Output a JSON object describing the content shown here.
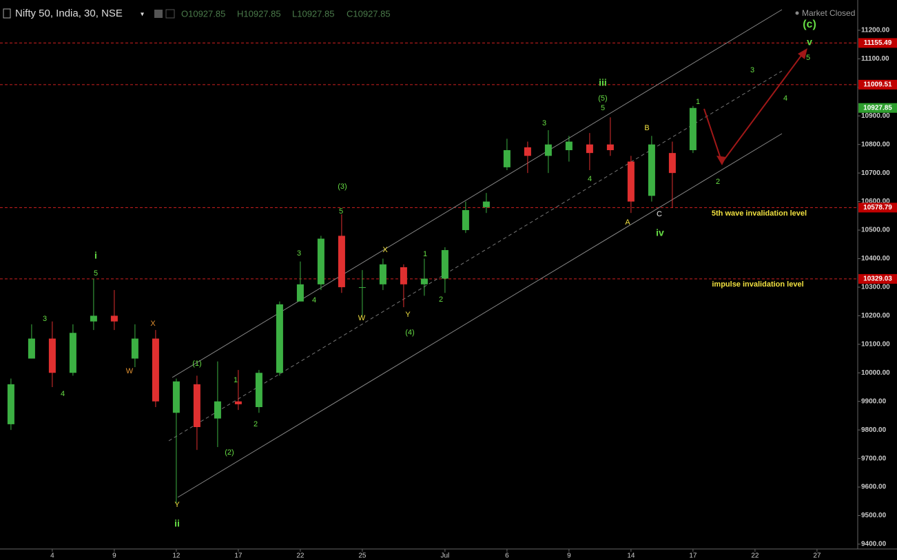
{
  "chart_data": {
    "type": "candlestick",
    "title": "Nifty 50, India, 30, NSE",
    "legend_values": [
      "O10927.85",
      "H10927.85",
      "L10927.85",
      "C10927.85"
    ],
    "status": "Market Closed",
    "up_color": "#3cb043",
    "down_color": "#e03030",
    "candles": [
      {
        "x": -2,
        "open": 9820,
        "high": 9980,
        "low": 9800,
        "close": 9960
      },
      {
        "x": -1,
        "open": 10050,
        "high": 10170,
        "low": 10050,
        "close": 10120
      },
      {
        "x": 0,
        "open": 10120,
        "high": 10180,
        "low": 9950,
        "close": 10000
      },
      {
        "x": 1,
        "open": 10000,
        "high": 10170,
        "low": 9990,
        "close": 10140
      },
      {
        "x": 2,
        "open": 10180,
        "high": 10330,
        "low": 10150,
        "close": 10200
      },
      {
        "x": 3,
        "open": 10200,
        "high": 10290,
        "low": 10150,
        "close": 10180
      },
      {
        "x": 4,
        "open": 10050,
        "high": 10170,
        "low": 10020,
        "close": 10120
      },
      {
        "x": 5,
        "open": 10120,
        "high": 10150,
        "low": 9880,
        "close": 9900
      },
      {
        "x": 6,
        "open": 9860,
        "high": 9980,
        "low": 9544,
        "close": 9970
      },
      {
        "x": 7,
        "open": 9960,
        "high": 9990,
        "low": 9730,
        "close": 9810
      },
      {
        "x": 8,
        "open": 9840,
        "high": 10040,
        "low": 9740,
        "close": 9900
      },
      {
        "x": 9,
        "open": 9900,
        "high": 10010,
        "low": 9870,
        "close": 9890
      },
      {
        "x": 10,
        "open": 9880,
        "high": 10010,
        "low": 9860,
        "close": 10000
      },
      {
        "x": 11,
        "open": 10000,
        "high": 10250,
        "low": 9990,
        "close": 10240
      },
      {
        "x": 12,
        "open": 10250,
        "high": 10390,
        "low": 10260,
        "close": 10310
      },
      {
        "x": 13,
        "open": 10310,
        "high": 10480,
        "low": 10290,
        "close": 10470
      },
      {
        "x": 14,
        "open": 10480,
        "high": 10555,
        "low": 10280,
        "close": 10300
      },
      {
        "x": 15,
        "open": 10300,
        "high": 10360,
        "low": 10200,
        "close": 10300
      },
      {
        "x": 16,
        "open": 10310,
        "high": 10400,
        "low": 10290,
        "close": 10380
      },
      {
        "x": 17,
        "open": 10370,
        "high": 10380,
        "low": 10230,
        "close": 10310
      },
      {
        "x": 18,
        "open": 10310,
        "high": 10400,
        "low": 10270,
        "close": 10330
      },
      {
        "x": 19,
        "open": 10330,
        "high": 10440,
        "low": 10280,
        "close": 10430
      },
      {
        "x": 20,
        "open": 10500,
        "high": 10600,
        "low": 10490,
        "close": 10570
      },
      {
        "x": 21,
        "open": 10580,
        "high": 10630,
        "low": 10560,
        "close": 10600
      },
      {
        "x": 22,
        "open": 10720,
        "high": 10820,
        "low": 10710,
        "close": 10780
      },
      {
        "x": 23,
        "open": 10790,
        "high": 10810,
        "low": 10700,
        "close": 10760
      },
      {
        "x": 24,
        "open": 10760,
        "high": 10850,
        "low": 10700,
        "close": 10800
      },
      {
        "x": 25,
        "open": 10780,
        "high": 10830,
        "low": 10740,
        "close": 10810
      },
      {
        "x": 26,
        "open": 10800,
        "high": 10840,
        "low": 10710,
        "close": 10770
      },
      {
        "x": 27,
        "open": 10800,
        "high": 10895,
        "low": 10760,
        "close": 10780
      },
      {
        "x": 28,
        "open": 10740,
        "high": 10760,
        "low": 10560,
        "close": 10600
      },
      {
        "x": 29,
        "open": 10620,
        "high": 10830,
        "low": 10600,
        "close": 10800
      },
      {
        "x": 30,
        "open": 10770,
        "high": 10810,
        "low": 10578,
        "close": 10700
      },
      {
        "x": 31,
        "open": 10780,
        "high": 10935,
        "low": 10770,
        "close": 10927.85
      }
    ],
    "last_price": 10927.85,
    "levels": [
      11155.49,
      11009.51,
      10578.79,
      10329.03
    ],
    "xlim": [
      -2.53,
      38.97
    ],
    "xticks": [
      {
        "value": 0,
        "label": "4"
      },
      {
        "value": 3,
        "label": "9"
      },
      {
        "value": 6,
        "label": "12"
      },
      {
        "value": 9,
        "label": "17"
      },
      {
        "value": 12,
        "label": "22"
      },
      {
        "value": 15,
        "label": "25"
      },
      {
        "value": 19,
        "label": "Jul"
      },
      {
        "value": 22,
        "label": "6"
      },
      {
        "value": 25,
        "label": "9"
      },
      {
        "value": 28,
        "label": "14"
      },
      {
        "value": 31,
        "label": "17"
      },
      {
        "value": 34,
        "label": "22"
      },
      {
        "value": 37,
        "label": "27"
      }
    ],
    "ylim": [
      9383,
      11306
    ],
    "yticks": [
      {
        "value": 9400,
        "label": "9400.00"
      },
      {
        "value": 9500,
        "label": "9500.00"
      },
      {
        "value": 9600,
        "label": "9600.00"
      },
      {
        "value": 9700,
        "label": "9700.00"
      },
      {
        "value": 9800,
        "label": "9800.00"
      },
      {
        "value": 9900,
        "label": "9900.00"
      },
      {
        "value": 10000,
        "label": "10000.00"
      },
      {
        "value": 10100,
        "label": "10100.00"
      },
      {
        "value": 10200,
        "label": "10200.00"
      },
      {
        "value": 10300,
        "label": "10300.00"
      },
      {
        "value": 10400,
        "label": "10400.00"
      },
      {
        "value": 10500,
        "label": "10500.00"
      },
      {
        "value": 10600,
        "label": "10600.00"
      },
      {
        "value": 10700,
        "label": "10700.00"
      },
      {
        "value": 10800,
        "label": "10800.00"
      },
      {
        "value": 10900,
        "label": "10900.00"
      },
      {
        "value": 11000,
        "label": "11000.00"
      },
      {
        "value": 11100,
        "label": "11100.00"
      },
      {
        "value": 11200,
        "label": "11200.00"
      }
    ],
    "annotations": [
      "(c)",
      "v",
      "5",
      "3",
      "4",
      "iii",
      "(5)",
      "5",
      "1",
      "B",
      "2",
      "A",
      "C",
      "iv",
      "3",
      "4",
      "(3)",
      "5",
      "X",
      "1",
      "3",
      "4",
      "W",
      "Y",
      "2",
      "(4)",
      "i",
      "5",
      "3",
      "4",
      "X",
      "W",
      "(1)",
      "1",
      "2",
      "(2)",
      "Y",
      "ii",
      "5th wave invalidation level",
      "impulse invalidation level"
    ]
  }
}
